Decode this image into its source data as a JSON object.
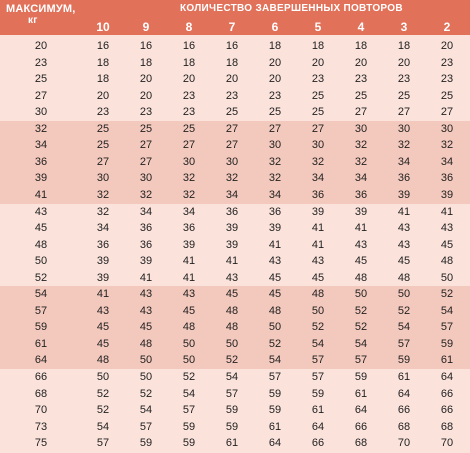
{
  "header": {
    "max_label": "МАКСИМУМ,",
    "max_unit": "кг",
    "reps_label": "КОЛИЧЕСТВО ЗАВЕРШЕННЫХ ПОВТОРОВ",
    "columns": [
      "10",
      "9",
      "8",
      "7",
      "6",
      "5",
      "4",
      "3",
      "2"
    ]
  },
  "rows": [
    [
      "20",
      "16",
      "16",
      "16",
      "16",
      "18",
      "18",
      "18",
      "18",
      "20"
    ],
    [
      "23",
      "18",
      "18",
      "18",
      "18",
      "20",
      "20",
      "20",
      "20",
      "23"
    ],
    [
      "25",
      "18",
      "20",
      "20",
      "20",
      "20",
      "23",
      "23",
      "23",
      "23"
    ],
    [
      "27",
      "20",
      "20",
      "23",
      "23",
      "23",
      "25",
      "25",
      "25",
      "25"
    ],
    [
      "30",
      "23",
      "23",
      "23",
      "25",
      "25",
      "25",
      "27",
      "27",
      "27"
    ],
    [
      "32",
      "25",
      "25",
      "25",
      "27",
      "27",
      "27",
      "30",
      "30",
      "30"
    ],
    [
      "34",
      "25",
      "27",
      "27",
      "27",
      "30",
      "30",
      "32",
      "32",
      "32"
    ],
    [
      "36",
      "27",
      "27",
      "30",
      "30",
      "32",
      "32",
      "32",
      "34",
      "34"
    ],
    [
      "39",
      "30",
      "30",
      "32",
      "32",
      "32",
      "34",
      "34",
      "36",
      "36"
    ],
    [
      "41",
      "32",
      "32",
      "32",
      "34",
      "34",
      "36",
      "36",
      "39",
      "39"
    ],
    [
      "43",
      "32",
      "34",
      "34",
      "36",
      "36",
      "39",
      "39",
      "41",
      "41"
    ],
    [
      "45",
      "34",
      "36",
      "36",
      "39",
      "39",
      "41",
      "41",
      "43",
      "43"
    ],
    [
      "48",
      "36",
      "36",
      "39",
      "39",
      "41",
      "41",
      "43",
      "43",
      "45"
    ],
    [
      "50",
      "39",
      "39",
      "41",
      "41",
      "43",
      "43",
      "45",
      "45",
      "48"
    ],
    [
      "52",
      "39",
      "41",
      "41",
      "43",
      "45",
      "45",
      "48",
      "48",
      "50"
    ],
    [
      "54",
      "41",
      "43",
      "43",
      "45",
      "45",
      "48",
      "50",
      "50",
      "52"
    ],
    [
      "57",
      "43",
      "43",
      "45",
      "48",
      "48",
      "50",
      "52",
      "52",
      "54"
    ],
    [
      "59",
      "45",
      "45",
      "48",
      "48",
      "50",
      "52",
      "52",
      "54",
      "57"
    ],
    [
      "61",
      "45",
      "48",
      "50",
      "50",
      "52",
      "54",
      "54",
      "57",
      "59"
    ],
    [
      "64",
      "48",
      "50",
      "50",
      "52",
      "54",
      "57",
      "57",
      "59",
      "61"
    ],
    [
      "66",
      "50",
      "50",
      "52",
      "54",
      "57",
      "57",
      "59",
      "61",
      "64"
    ],
    [
      "68",
      "52",
      "52",
      "54",
      "57",
      "59",
      "59",
      "61",
      "64",
      "66"
    ],
    [
      "70",
      "52",
      "54",
      "57",
      "59",
      "59",
      "61",
      "64",
      "66",
      "66"
    ],
    [
      "73",
      "54",
      "57",
      "59",
      "59",
      "61",
      "64",
      "66",
      "68",
      "68"
    ],
    [
      "75",
      "57",
      "59",
      "59",
      "61",
      "64",
      "66",
      "68",
      "70",
      "70"
    ]
  ]
}
